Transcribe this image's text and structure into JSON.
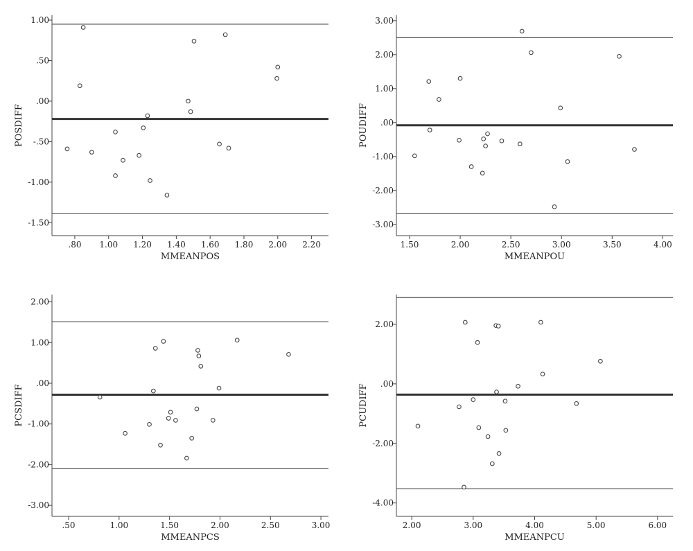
{
  "colors": {
    "axis": "#444444",
    "mean_line": "#333333",
    "limit_line": "#555555",
    "marker": "#444444"
  },
  "chart_data": [
    {
      "type": "scatter",
      "xlabel": "MMEANPOS",
      "ylabel": "POSDIFF",
      "xlim": [
        0.665,
        2.3
      ],
      "ylim": [
        -1.66,
        1.06
      ],
      "xticks": [
        0.8,
        1.0,
        1.2,
        1.4,
        1.6,
        1.8,
        2.0,
        2.2
      ],
      "xtick_labels": [
        ".80",
        "1.00",
        "1.20",
        "1.40",
        "1.60",
        "1.80",
        "2.00",
        "2.20"
      ],
      "yticks": [
        1.0,
        0.5,
        0.0,
        -0.5,
        -1.0,
        -1.5
      ],
      "ytick_labels": [
        "1.00",
        ".50",
        ".00",
        "-.50",
        "-1.00",
        "-1.50"
      ],
      "hlines": {
        "upper": 0.95,
        "mean": -0.22,
        "lower": -1.39
      },
      "points": [
        {
          "x": 0.755,
          "y": -0.59
        },
        {
          "x": 0.83,
          "y": 0.19
        },
        {
          "x": 0.85,
          "y": 0.91
        },
        {
          "x": 0.9,
          "y": -0.63
        },
        {
          "x": 1.04,
          "y": -0.38
        },
        {
          "x": 1.04,
          "y": -0.92
        },
        {
          "x": 1.085,
          "y": -0.73
        },
        {
          "x": 1.18,
          "y": -0.67
        },
        {
          "x": 1.205,
          "y": -0.33
        },
        {
          "x": 1.23,
          "y": -0.18
        },
        {
          "x": 1.245,
          "y": -0.98
        },
        {
          "x": 1.345,
          "y": -1.16
        },
        {
          "x": 1.47,
          "y": 0.0
        },
        {
          "x": 1.485,
          "y": -0.13
        },
        {
          "x": 1.505,
          "y": 0.74
        },
        {
          "x": 1.655,
          "y": -0.53
        },
        {
          "x": 1.69,
          "y": 0.82
        },
        {
          "x": 1.71,
          "y": -0.58
        },
        {
          "x": 1.995,
          "y": 0.28
        },
        {
          "x": 2.0,
          "y": 0.42
        }
      ]
    },
    {
      "type": "scatter",
      "xlabel": "MMEANPOU",
      "ylabel": "POUDIFF",
      "xlim": [
        1.37,
        4.1
      ],
      "ylim": [
        -3.33,
        3.16
      ],
      "xticks": [
        1.5,
        2.0,
        2.5,
        3.0,
        3.5,
        4.0
      ],
      "xtick_labels": [
        "1.50",
        "2.00",
        "2.50",
        "3.00",
        "3.50",
        "4.00"
      ],
      "yticks": [
        3.0,
        2.0,
        1.0,
        0.0,
        -1.0,
        -2.0,
        -3.0
      ],
      "ytick_labels": [
        "3.00",
        "2.00",
        "1.00",
        ".00",
        "-1.00",
        "-2.00",
        "-3.00"
      ],
      "hlines": {
        "upper": 2.5,
        "mean": -0.08,
        "lower": -2.68
      },
      "points": [
        {
          "x": 1.55,
          "y": -0.98
        },
        {
          "x": 1.69,
          "y": 1.21
        },
        {
          "x": 1.7,
          "y": -0.22
        },
        {
          "x": 1.79,
          "y": 0.68
        },
        {
          "x": 1.99,
          "y": -0.52
        },
        {
          "x": 2.0,
          "y": 1.3
        },
        {
          "x": 2.11,
          "y": -1.3
        },
        {
          "x": 2.22,
          "y": -1.49
        },
        {
          "x": 2.23,
          "y": -0.48
        },
        {
          "x": 2.25,
          "y": -0.69
        },
        {
          "x": 2.27,
          "y": -0.33
        },
        {
          "x": 2.41,
          "y": -0.54
        },
        {
          "x": 2.59,
          "y": -0.63
        },
        {
          "x": 2.61,
          "y": 2.69
        },
        {
          "x": 2.7,
          "y": 2.06
        },
        {
          "x": 2.93,
          "y": -2.48
        },
        {
          "x": 2.99,
          "y": 0.43
        },
        {
          "x": 3.06,
          "y": -1.15
        },
        {
          "x": 3.57,
          "y": 1.95
        },
        {
          "x": 3.72,
          "y": -0.79
        }
      ]
    },
    {
      "type": "scatter",
      "xlabel": "MMEANPCS",
      "ylabel": "PCSDIFF",
      "xlim": [
        0.335,
        3.075
      ],
      "ylim": [
        -3.27,
        2.18
      ],
      "xticks": [
        0.5,
        1.0,
        1.5,
        2.0,
        2.5,
        3.0
      ],
      "xtick_labels": [
        ".50",
        "1.00",
        "1.50",
        "2.00",
        "2.50",
        "3.00"
      ],
      "yticks": [
        2.0,
        1.0,
        0.0,
        -1.0,
        -2.0,
        -3.0
      ],
      "ytick_labels": [
        "2.00",
        "1.00",
        ".00",
        "-1.00",
        "-2.00",
        "-3.00"
      ],
      "hlines": {
        "upper": 1.51,
        "mean": -0.28,
        "lower": -2.09
      },
      "points": [
        {
          "x": 0.81,
          "y": -0.34
        },
        {
          "x": 1.06,
          "y": -1.23
        },
        {
          "x": 1.3,
          "y": -1.01
        },
        {
          "x": 1.34,
          "y": -0.19
        },
        {
          "x": 1.36,
          "y": 0.86
        },
        {
          "x": 1.41,
          "y": -1.52
        },
        {
          "x": 1.44,
          "y": 1.03
        },
        {
          "x": 1.49,
          "y": -0.86
        },
        {
          "x": 1.51,
          "y": -0.71
        },
        {
          "x": 1.56,
          "y": -0.91
        },
        {
          "x": 1.67,
          "y": -1.84
        },
        {
          "x": 1.72,
          "y": -1.35
        },
        {
          "x": 1.77,
          "y": -0.63
        },
        {
          "x": 1.78,
          "y": 0.81
        },
        {
          "x": 1.79,
          "y": 0.67
        },
        {
          "x": 1.81,
          "y": 0.42
        },
        {
          "x": 1.93,
          "y": -0.91
        },
        {
          "x": 1.99,
          "y": -0.12
        },
        {
          "x": 2.17,
          "y": 1.06
        },
        {
          "x": 2.68,
          "y": 0.71
        }
      ]
    },
    {
      "type": "scatter",
      "xlabel": "MMEANPCU",
      "ylabel": "PCUDIFF",
      "xlim": [
        1.75,
        6.25
      ],
      "ylim": [
        -4.45,
        3.0
      ],
      "xticks": [
        2.0,
        3.0,
        4.0,
        5.0,
        6.0
      ],
      "xtick_labels": [
        "2.00",
        "3.00",
        "4.00",
        "5.00",
        "6.00"
      ],
      "yticks": [
        2.0,
        0.0,
        -2.0,
        -4.0
      ],
      "ytick_labels": [
        "2.00",
        ".00",
        "-2.00",
        "-4.00"
      ],
      "hlines": {
        "upper": 2.9,
        "mean": -0.36,
        "lower": -3.52
      },
      "points": [
        {
          "x": 2.1,
          "y": -1.42
        },
        {
          "x": 2.77,
          "y": -0.77
        },
        {
          "x": 2.85,
          "y": -3.47
        },
        {
          "x": 2.87,
          "y": 2.07
        },
        {
          "x": 3.0,
          "y": -0.53
        },
        {
          "x": 3.07,
          "y": 1.39
        },
        {
          "x": 3.09,
          "y": -1.47
        },
        {
          "x": 3.24,
          "y": -1.77
        },
        {
          "x": 3.31,
          "y": -2.68
        },
        {
          "x": 3.37,
          "y": 1.96
        },
        {
          "x": 3.38,
          "y": -0.27
        },
        {
          "x": 3.41,
          "y": 1.94
        },
        {
          "x": 3.42,
          "y": -2.34
        },
        {
          "x": 3.52,
          "y": -0.58
        },
        {
          "x": 3.53,
          "y": -1.56
        },
        {
          "x": 3.73,
          "y": -0.08
        },
        {
          "x": 4.1,
          "y": 2.07
        },
        {
          "x": 4.13,
          "y": 0.33
        },
        {
          "x": 4.68,
          "y": -0.66
        },
        {
          "x": 5.07,
          "y": 0.76
        }
      ]
    }
  ]
}
